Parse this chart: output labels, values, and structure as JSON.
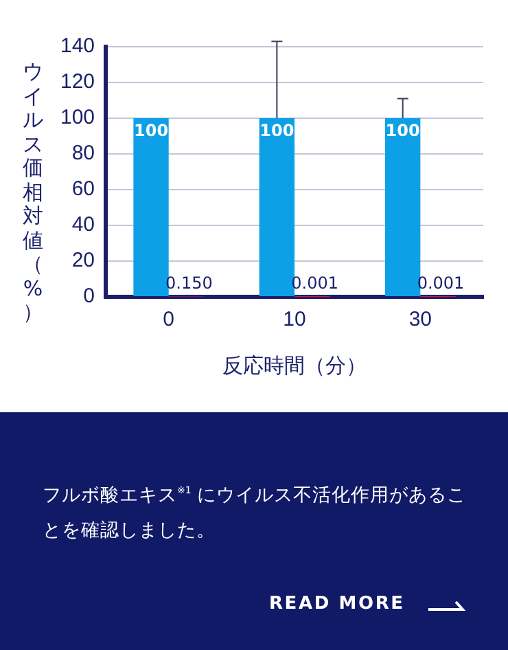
{
  "chart_data": {
    "type": "bar",
    "categories": [
      "0",
      "10",
      "30"
    ],
    "series": [
      {
        "color": "#0ea0e6",
        "values": [
          100,
          100,
          100
        ],
        "errors": [
          null,
          43,
          11
        ],
        "value_labels": [
          "100",
          "100",
          "100"
        ]
      },
      {
        "color": "#e8102a",
        "values": [
          0.15,
          0.001,
          0.001
        ],
        "value_labels": [
          "0.150",
          "0.001",
          "0.001"
        ]
      }
    ],
    "xlabel": "反応時間（分）",
    "ylabel": "ウイルス価相対値（%）",
    "ylim": [
      0,
      140
    ],
    "yticks": [
      0,
      20,
      40,
      60,
      80,
      100,
      120,
      140
    ],
    "grid": "y",
    "legend": false,
    "annotations": [
      "フルボ酸エキス$^{※1}$ にウイルス不活化作用があることを確認しました。",
      "READ MORE"
    ]
  }
}
